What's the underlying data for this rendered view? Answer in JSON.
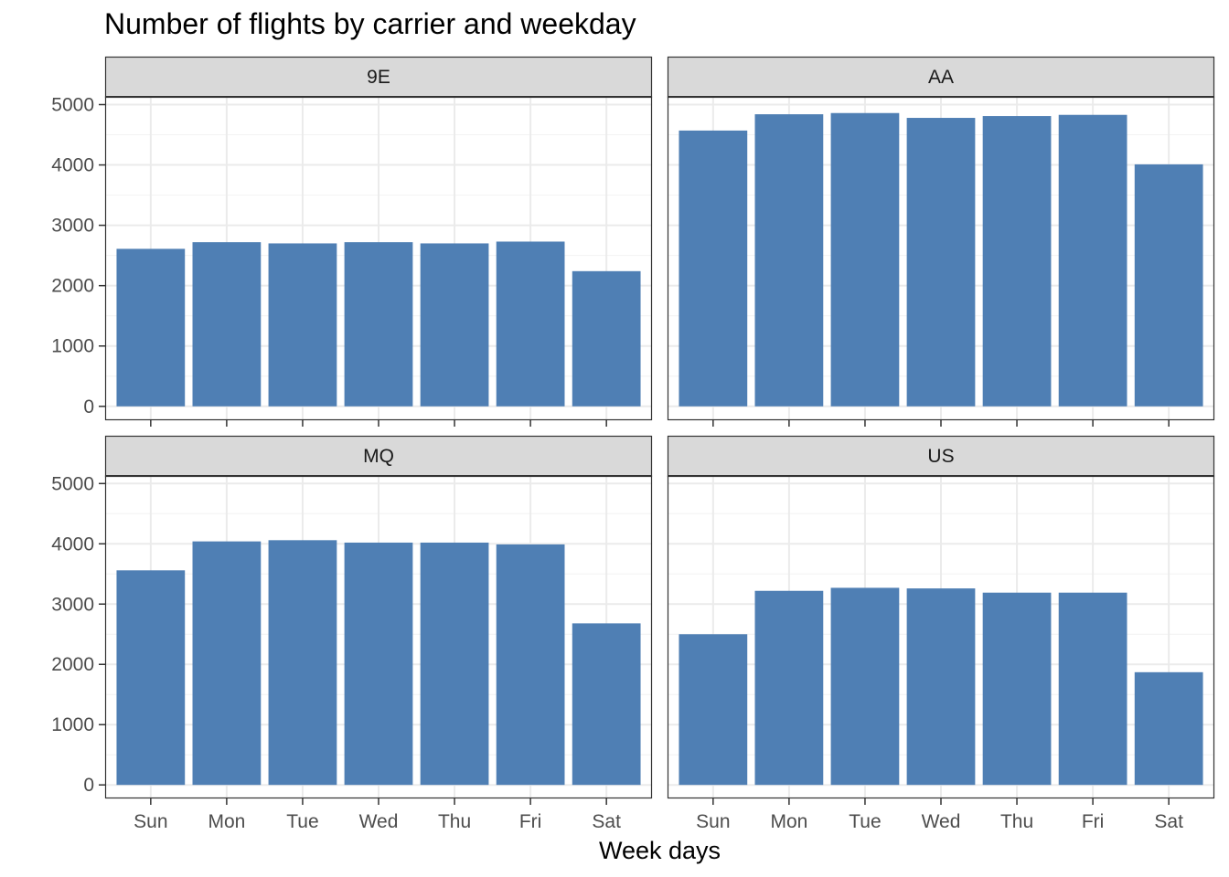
{
  "chart_data": {
    "type": "bar",
    "title": "Number of flights by carrier and weekday",
    "xlabel": "Week days",
    "ylabel": "",
    "ylim": [
      0,
      5000
    ],
    "yticks": [
      0,
      1000,
      2000,
      3000,
      4000,
      5000
    ],
    "categories": [
      "Sun",
      "Mon",
      "Tue",
      "Wed",
      "Thu",
      "Fri",
      "Sat"
    ],
    "grid": true,
    "bar_color": "#4f7fb4",
    "facets": [
      {
        "label": "9E",
        "values": [
          2610,
          2720,
          2700,
          2720,
          2700,
          2730,
          2240
        ]
      },
      {
        "label": "AA",
        "values": [
          4570,
          4840,
          4860,
          4780,
          4810,
          4830,
          4010
        ]
      },
      {
        "label": "MQ",
        "values": [
          3560,
          4040,
          4060,
          4020,
          4020,
          3990,
          2680
        ]
      },
      {
        "label": "US",
        "values": [
          2500,
          3220,
          3270,
          3260,
          3190,
          3190,
          1870
        ]
      }
    ]
  }
}
